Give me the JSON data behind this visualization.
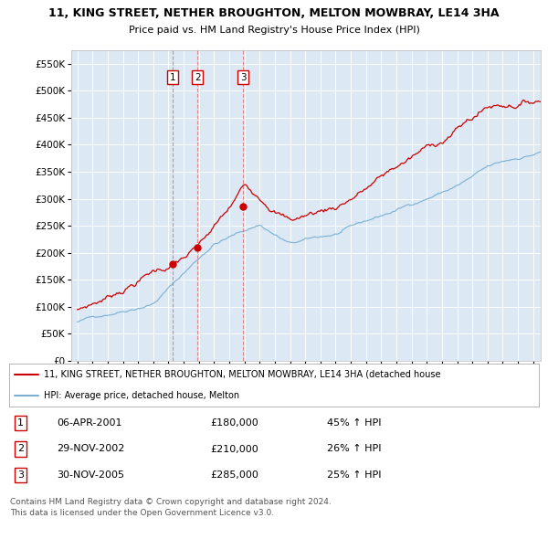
{
  "title_line1": "11, KING STREET, NETHER BROUGHTON, MELTON MOWBRAY, LE14 3HA",
  "title_line2": "Price paid vs. HM Land Registry's House Price Index (HPI)",
  "plot_bg_color": "#dce9f5",
  "red_line_color": "#cc0000",
  "blue_line_color": "#7ab0d4",
  "grid_color": "#ffffff",
  "sale_dates": [
    2001.27,
    2002.91,
    2005.92
  ],
  "sale_values": [
    180000,
    210000,
    285000
  ],
  "sale_labels": [
    "1",
    "2",
    "3"
  ],
  "legend_entries": [
    "11, KING STREET, NETHER BROUGHTON, MELTON MOWBRAY, LE14 3HA (detached house",
    "HPI: Average price, detached house, Melton"
  ],
  "table_rows": [
    {
      "num": "1",
      "date": "06-APR-2001",
      "price": "£180,000",
      "change": "45% ↑ HPI"
    },
    {
      "num": "2",
      "date": "29-NOV-2002",
      "price": "£210,000",
      "change": "26% ↑ HPI"
    },
    {
      "num": "3",
      "date": "30-NOV-2005",
      "price": "£285,000",
      "change": "25% ↑ HPI"
    }
  ],
  "footer": "Contains HM Land Registry data © Crown copyright and database right 2024.\nThis data is licensed under the Open Government Licence v3.0.",
  "ylim": [
    0,
    575000
  ],
  "yticks": [
    0,
    50000,
    100000,
    150000,
    200000,
    250000,
    300000,
    350000,
    400000,
    450000,
    500000,
    550000
  ],
  "xlim_start": 1994.6,
  "xlim_end": 2025.5,
  "n_months": 373
}
